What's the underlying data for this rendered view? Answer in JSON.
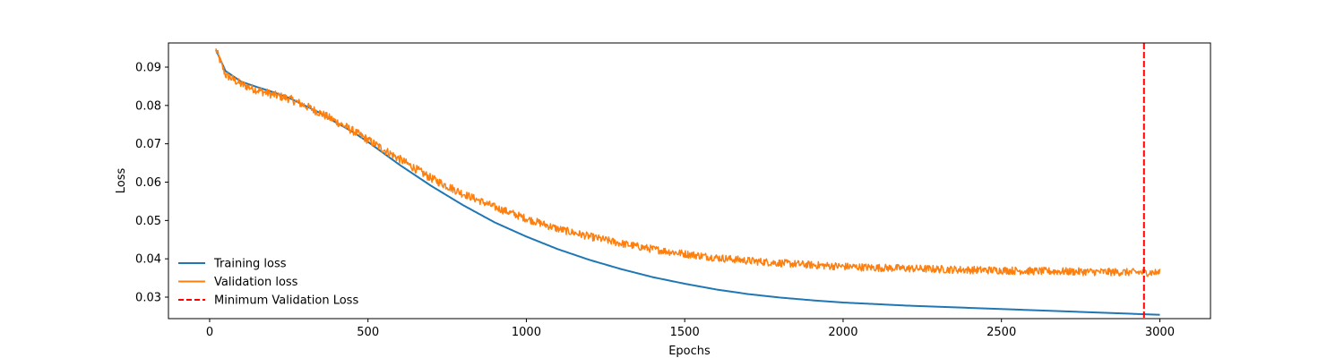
{
  "chart_data": {
    "type": "line",
    "title": "",
    "xlabel": "Epochs",
    "ylabel": "Loss",
    "xlim": [
      -130,
      3160
    ],
    "ylim": [
      0.0244,
      0.0963
    ],
    "xticks": [
      0,
      500,
      1000,
      1500,
      2000,
      2500,
      3000
    ],
    "yticks": [
      0.03,
      0.04,
      0.05,
      0.06,
      0.07,
      0.08,
      0.09
    ],
    "grid": false,
    "legend_position": "lower-left",
    "legend_frame": false,
    "series": [
      {
        "name": "Training loss",
        "color": "#1f77b4",
        "style": "solid",
        "x": [
          20,
          50,
          100,
          150,
          200,
          250,
          300,
          350,
          400,
          450,
          500,
          550,
          600,
          700,
          800,
          900,
          1000,
          1100,
          1200,
          1300,
          1400,
          1500,
          1600,
          1700,
          1800,
          1900,
          2000,
          2100,
          2200,
          2300,
          2400,
          2500,
          2600,
          2700,
          2800,
          2900,
          3000
        ],
        "y": [
          0.0945,
          0.089,
          0.0862,
          0.0848,
          0.0835,
          0.082,
          0.08,
          0.078,
          0.0755,
          0.0732,
          0.0705,
          0.0675,
          0.0645,
          0.059,
          0.054,
          0.0495,
          0.0458,
          0.0425,
          0.0397,
          0.0373,
          0.0352,
          0.0335,
          0.032,
          0.0308,
          0.0299,
          0.0292,
          0.0286,
          0.0282,
          0.0278,
          0.0275,
          0.0272,
          0.0269,
          0.0266,
          0.0263,
          0.026,
          0.0257,
          0.0254
        ]
      },
      {
        "name": "Validation loss",
        "color": "#ff7f0e",
        "style": "solid",
        "noise": 0.001,
        "x": [
          20,
          50,
          100,
          150,
          200,
          250,
          300,
          350,
          400,
          450,
          500,
          550,
          600,
          700,
          800,
          900,
          1000,
          1100,
          1200,
          1300,
          1400,
          1500,
          1600,
          1700,
          1800,
          1900,
          2000,
          2100,
          2200,
          2300,
          2400,
          2500,
          2600,
          2700,
          2800,
          2900,
          3000
        ],
        "y": [
          0.0945,
          0.088,
          0.0855,
          0.084,
          0.0828,
          0.0818,
          0.08,
          0.078,
          0.0758,
          0.0735,
          0.071,
          0.0685,
          0.066,
          0.061,
          0.057,
          0.0535,
          0.0505,
          0.0478,
          0.0458,
          0.044,
          0.0425,
          0.0413,
          0.0403,
          0.0395,
          0.0389,
          0.0384,
          0.038,
          0.0377,
          0.0375,
          0.0373,
          0.0371,
          0.037,
          0.0368,
          0.0367,
          0.0366,
          0.0365,
          0.0364
        ]
      }
    ],
    "vlines": [
      {
        "name": "Minimum Validation Loss",
        "x": 2950,
        "color": "#ff0000",
        "style": "dashed"
      }
    ]
  }
}
